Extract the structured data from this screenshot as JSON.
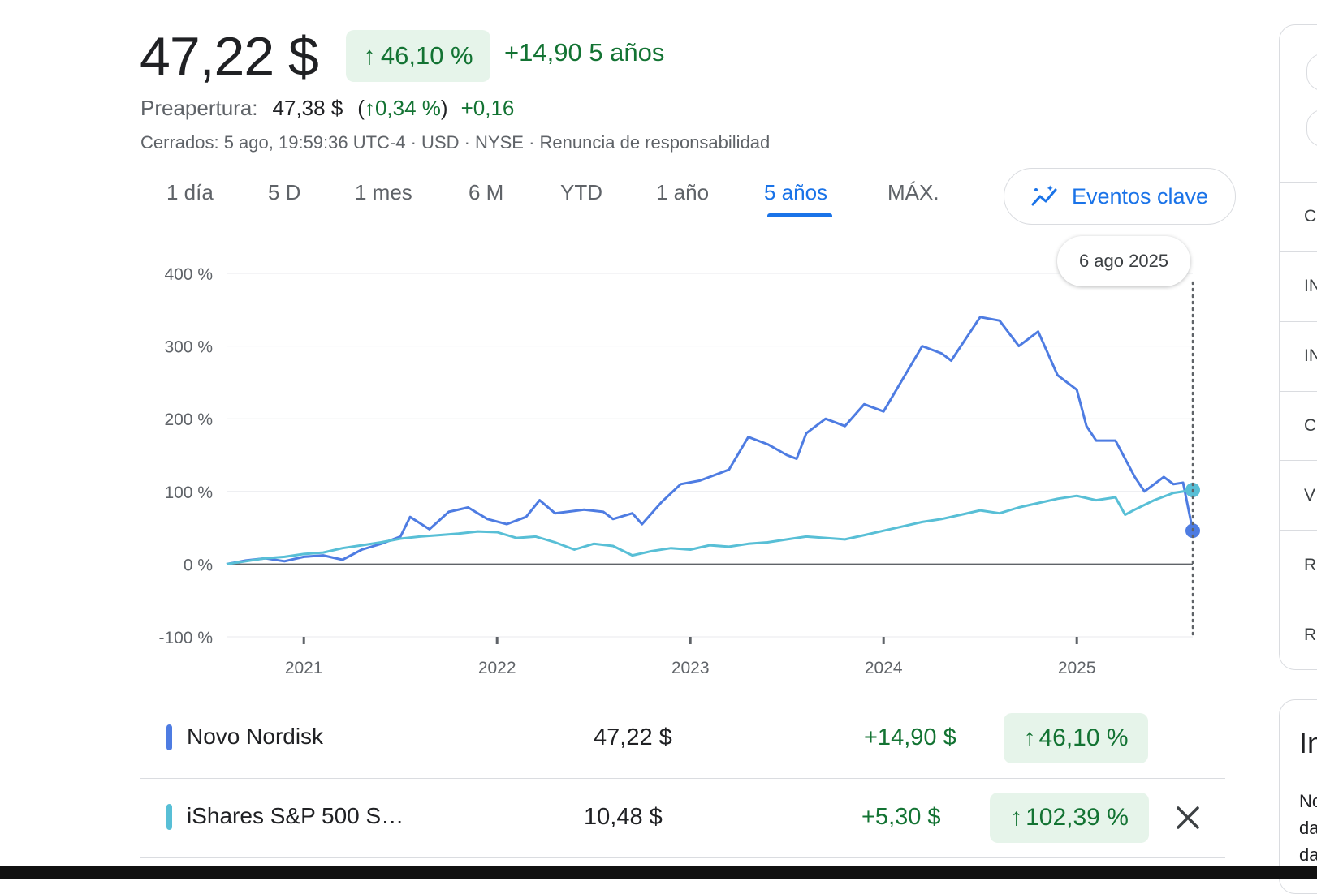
{
  "header": {
    "price": "47,22 $",
    "change_chip": {
      "arrow": "↑",
      "percent": "46,10 %"
    },
    "change_abs": "+14,90",
    "change_period": "5 años",
    "premarket": {
      "label": "Preapertura:",
      "price": "47,38 $",
      "pct_open": "(",
      "arrow": "↑",
      "pct": "0,34 %",
      "pct_close": ")",
      "abs": "+0,16"
    },
    "meta": "Cerrados: 5 ago, 19:59:36 UTC-4 · USD · NYSE · Renuncia de responsabilidad"
  },
  "tabs": [
    {
      "label": "1 día"
    },
    {
      "label": "5 D"
    },
    {
      "label": "1 mes"
    },
    {
      "label": "6 M"
    },
    {
      "label": "YTD"
    },
    {
      "label": "1 año"
    },
    {
      "label": "5 años"
    },
    {
      "label": "MÁX."
    }
  ],
  "active_tab": "5 años",
  "key_events_label": "Eventos clave",
  "tooltip_date": "6 ago 2025",
  "chart_data": {
    "type": "line",
    "y_ticks": [
      "400 %",
      "300 %",
      "200 %",
      "100 %",
      "0 %",
      "-100 %"
    ],
    "x_ticks": [
      "2021",
      "2022",
      "2023",
      "2024",
      "2025"
    ],
    "ylim": [
      -100,
      400
    ],
    "xlim": [
      2020.6,
      2025.6
    ],
    "grid": true,
    "series": [
      {
        "name": "Novo Nordisk",
        "color": "#4e7ce2",
        "points": [
          [
            2020.6,
            0
          ],
          [
            2020.7,
            5
          ],
          [
            2020.8,
            8
          ],
          [
            2020.9,
            4
          ],
          [
            2021.0,
            10
          ],
          [
            2021.1,
            12
          ],
          [
            2021.2,
            6
          ],
          [
            2021.3,
            20
          ],
          [
            2021.4,
            28
          ],
          [
            2021.5,
            38
          ],
          [
            2021.55,
            65
          ],
          [
            2021.65,
            48
          ],
          [
            2021.75,
            72
          ],
          [
            2021.85,
            78
          ],
          [
            2021.95,
            62
          ],
          [
            2022.05,
            55
          ],
          [
            2022.15,
            65
          ],
          [
            2022.22,
            88
          ],
          [
            2022.3,
            70
          ],
          [
            2022.45,
            75
          ],
          [
            2022.55,
            72
          ],
          [
            2022.6,
            62
          ],
          [
            2022.7,
            70
          ],
          [
            2022.75,
            55
          ],
          [
            2022.85,
            85
          ],
          [
            2022.95,
            110
          ],
          [
            2023.05,
            115
          ],
          [
            2023.2,
            130
          ],
          [
            2023.3,
            175
          ],
          [
            2023.4,
            165
          ],
          [
            2023.5,
            150
          ],
          [
            2023.55,
            145
          ],
          [
            2023.6,
            180
          ],
          [
            2023.7,
            200
          ],
          [
            2023.8,
            190
          ],
          [
            2023.9,
            220
          ],
          [
            2024.0,
            210
          ],
          [
            2024.1,
            255
          ],
          [
            2024.2,
            300
          ],
          [
            2024.3,
            290
          ],
          [
            2024.35,
            280
          ],
          [
            2024.45,
            320
          ],
          [
            2024.5,
            340
          ],
          [
            2024.6,
            335
          ],
          [
            2024.7,
            300
          ],
          [
            2024.8,
            320
          ],
          [
            2024.9,
            260
          ],
          [
            2025.0,
            240
          ],
          [
            2025.05,
            190
          ],
          [
            2025.1,
            170
          ],
          [
            2025.2,
            170
          ],
          [
            2025.3,
            120
          ],
          [
            2025.35,
            100
          ],
          [
            2025.45,
            120
          ],
          [
            2025.5,
            110
          ],
          [
            2025.55,
            112
          ],
          [
            2025.6,
            46
          ]
        ]
      },
      {
        "name": "iShares S&P 500 S…",
        "color": "#58bfd6",
        "points": [
          [
            2020.6,
            0
          ],
          [
            2020.8,
            8
          ],
          [
            2020.9,
            10
          ],
          [
            2021.0,
            14
          ],
          [
            2021.1,
            16
          ],
          [
            2021.2,
            22
          ],
          [
            2021.3,
            26
          ],
          [
            2021.4,
            30
          ],
          [
            2021.5,
            35
          ],
          [
            2021.6,
            38
          ],
          [
            2021.7,
            40
          ],
          [
            2021.8,
            42
          ],
          [
            2021.9,
            45
          ],
          [
            2022.0,
            44
          ],
          [
            2022.1,
            36
          ],
          [
            2022.2,
            38
          ],
          [
            2022.3,
            30
          ],
          [
            2022.4,
            20
          ],
          [
            2022.5,
            28
          ],
          [
            2022.6,
            25
          ],
          [
            2022.7,
            12
          ],
          [
            2022.8,
            18
          ],
          [
            2022.9,
            22
          ],
          [
            2023.0,
            20
          ],
          [
            2023.1,
            26
          ],
          [
            2023.2,
            24
          ],
          [
            2023.3,
            28
          ],
          [
            2023.4,
            30
          ],
          [
            2023.5,
            34
          ],
          [
            2023.6,
            38
          ],
          [
            2023.7,
            36
          ],
          [
            2023.8,
            34
          ],
          [
            2023.9,
            40
          ],
          [
            2024.0,
            46
          ],
          [
            2024.1,
            52
          ],
          [
            2024.2,
            58
          ],
          [
            2024.3,
            62
          ],
          [
            2024.4,
            68
          ],
          [
            2024.5,
            74
          ],
          [
            2024.6,
            70
          ],
          [
            2024.7,
            78
          ],
          [
            2024.8,
            84
          ],
          [
            2024.9,
            90
          ],
          [
            2025.0,
            94
          ],
          [
            2025.1,
            88
          ],
          [
            2025.2,
            92
          ],
          [
            2025.25,
            68
          ],
          [
            2025.3,
            75
          ],
          [
            2025.4,
            88
          ],
          [
            2025.5,
            98
          ],
          [
            2025.6,
            102
          ]
        ]
      }
    ]
  },
  "comparison": [
    {
      "name": "Novo Nordisk",
      "color": "#4e7ce2",
      "price": "47,22 $",
      "abs": "+14,90 $",
      "arrow": "↑",
      "pct": "46,10 %"
    },
    {
      "name": "iShares S&P 500 S…",
      "color": "#58bfd6",
      "price": "10,48 $",
      "abs": "+5,30 $",
      "arrow": "↑",
      "pct": "102,39 %"
    }
  ],
  "right_panel": {
    "letters": [
      "C",
      "IN",
      "IN",
      "C",
      "V",
      "R",
      "R"
    ],
    "panel2_head": "In",
    "panel2_lines": [
      "No",
      "da",
      "da"
    ]
  }
}
